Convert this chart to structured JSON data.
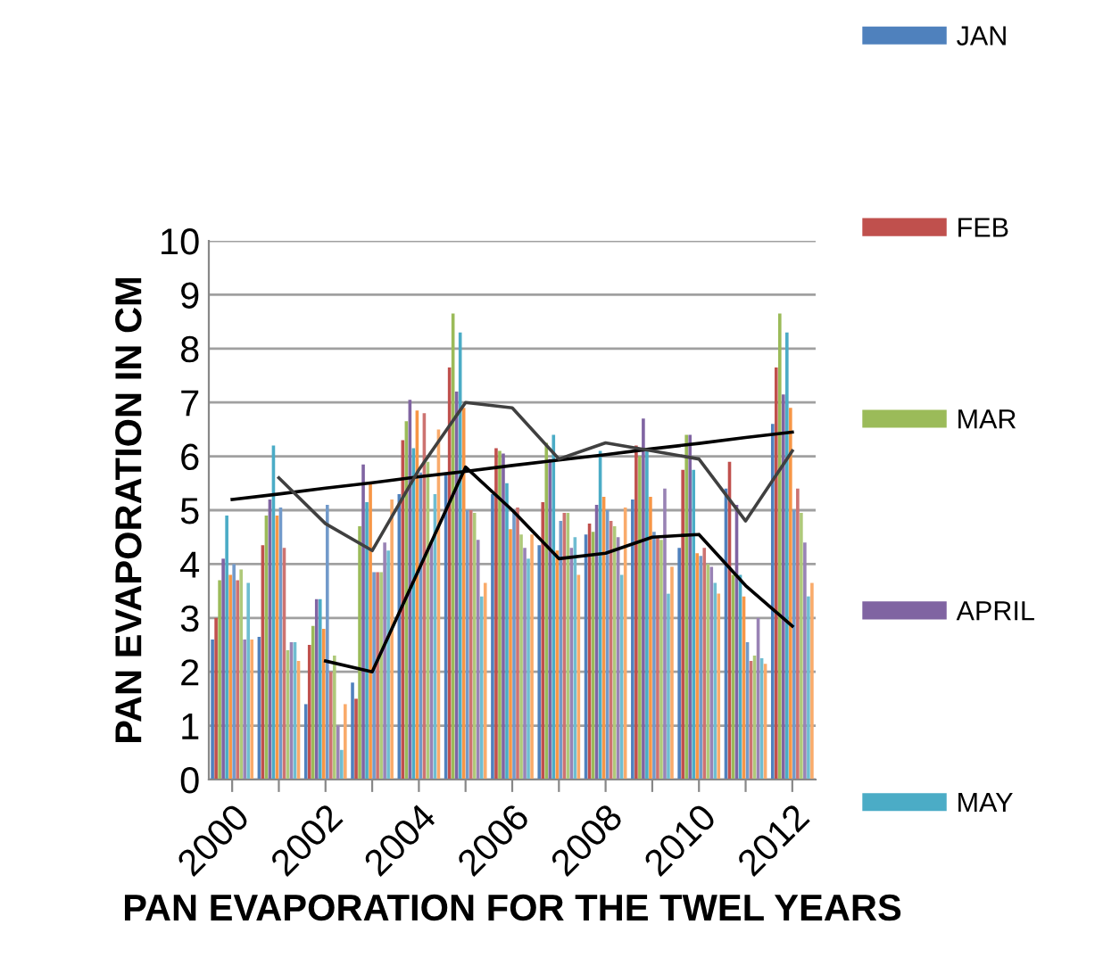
{
  "chart_data": {
    "type": "bar",
    "xlabel": "PAN EVAPORATION FOR THE TWEL YEARS",
    "ylabel": "PAN EVAPORATION IN CM",
    "categories": [
      "2000",
      null,
      "2002",
      null,
      "2004",
      null,
      "2006",
      null,
      "2008",
      null,
      "2010",
      null,
      "2012"
    ],
    "ylim": [
      0,
      10
    ],
    "yticks": [
      0,
      1,
      2,
      3,
      4,
      5,
      6,
      7,
      8,
      9,
      10
    ],
    "grid": "y",
    "legend": "right",
    "series": [
      {
        "name": "JAN",
        "color": "#4f81bd",
        "values": [
          2.6,
          2.65,
          1.4,
          1.8,
          5.3,
          5.7,
          5.3,
          4.35,
          4.55,
          5.2,
          4.3,
          5.4,
          6.6
        ]
      },
      {
        "name": "FEB",
        "color": "#c0504d",
        "values": [
          3.0,
          4.35,
          2.5,
          1.5,
          6.3,
          7.65,
          6.15,
          5.15,
          4.75,
          6.2,
          5.75,
          5.9,
          7.65
        ]
      },
      {
        "name": "MAR",
        "color": "#9bbb59",
        "values": [
          3.7,
          4.9,
          2.85,
          4.7,
          6.65,
          8.65,
          6.1,
          6.25,
          4.6,
          6.0,
          6.4,
          3.8,
          8.65
        ]
      },
      {
        "name": "APRIL",
        "color": "#8064a2",
        "values": [
          4.1,
          5.2,
          3.35,
          5.85,
          7.05,
          7.2,
          6.05,
          5.95,
          5.1,
          6.7,
          6.4,
          5.1,
          7.15
        ]
      },
      {
        "name": "MAY",
        "color": "#4bacc6",
        "values": [
          4.9,
          6.2,
          3.35,
          5.15,
          6.15,
          8.3,
          5.5,
          6.4,
          6.1,
          6.1,
          5.75,
          3.8,
          8.3
        ]
      },
      {
        "color": "#f79646",
        "values": [
          3.8,
          4.9,
          2.8,
          5.5,
          6.85,
          6.9,
          4.65,
          4.25,
          5.25,
          5.25,
          4.2,
          3.4,
          6.9
        ]
      },
      {
        "color": "#729aca",
        "values": [
          4.0,
          5.05,
          5.1,
          3.85,
          5.7,
          5.0,
          5.0,
          4.8,
          5.0,
          4.6,
          4.15,
          2.55,
          5.0
        ]
      },
      {
        "color": "#cd7371",
        "values": [
          3.7,
          4.3,
          2.0,
          3.85,
          6.8,
          5.0,
          5.05,
          4.95,
          4.8,
          4.5,
          4.3,
          2.2,
          5.4
        ]
      },
      {
        "color": "#afc97a",
        "values": [
          3.9,
          2.4,
          2.3,
          3.85,
          5.9,
          4.95,
          4.55,
          4.95,
          4.7,
          4.45,
          4.0,
          2.3,
          4.95
        ]
      },
      {
        "color": "#9983b5",
        "values": [
          2.6,
          2.55,
          1.0,
          4.4,
          4.4,
          4.45,
          4.3,
          4.3,
          4.5,
          5.4,
          3.95,
          3.0,
          4.4
        ]
      },
      {
        "color": "#6fbdd1",
        "values": [
          3.65,
          2.55,
          0.55,
          4.25,
          5.3,
          3.4,
          4.1,
          4.5,
          3.8,
          3.45,
          3.65,
          2.25,
          3.4
        ]
      },
      {
        "color": "#f9ab6b",
        "values": [
          2.6,
          2.2,
          1.4,
          5.2,
          6.5,
          3.65,
          4.55,
          3.8,
          5.05,
          3.95,
          3.45,
          2.15,
          3.65
        ]
      },
      {
        "type": "line",
        "color": "#000000",
        "values": [
          5.2,
          5.3,
          5.41,
          5.51,
          5.62,
          5.72,
          5.83,
          5.93,
          6.03,
          6.14,
          6.24,
          6.35,
          6.45
        ]
      },
      {
        "type": "line",
        "color": "#404040",
        "values": [
          null,
          5.6,
          4.75,
          4.25,
          5.75,
          7.0,
          6.9,
          5.95,
          6.25,
          6.1,
          5.95,
          4.8,
          6.1
        ]
      },
      {
        "type": "line",
        "color": "#000000",
        "values": [
          null,
          null,
          2.2,
          2.0,
          3.9,
          5.8,
          5.0,
          4.1,
          4.2,
          4.5,
          4.55,
          3.6,
          2.85
        ]
      }
    ]
  }
}
